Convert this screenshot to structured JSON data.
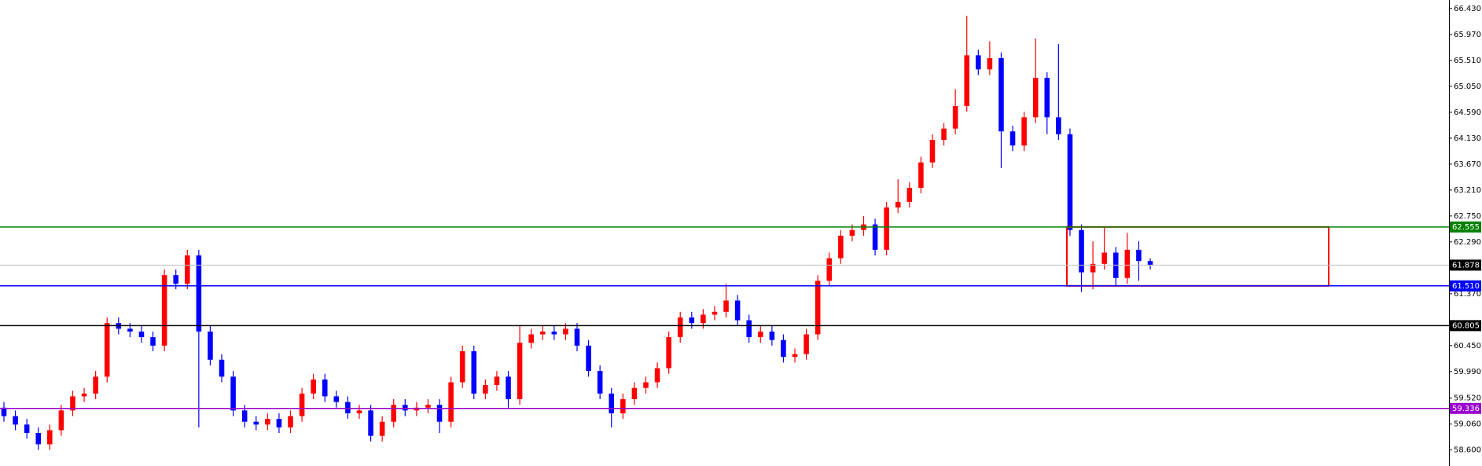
{
  "chart_data": {
    "type": "candlestick",
    "up_color": "#ff0000",
    "down_color": "#0000ff",
    "ylim": [
      58.315,
      66.581
    ],
    "yticks": [
      {
        "value": 66.43,
        "label": "66.430"
      },
      {
        "value": 65.97,
        "label": "65.970"
      },
      {
        "value": 65.51,
        "label": "65.510"
      },
      {
        "value": 65.05,
        "label": "65.050"
      },
      {
        "value": 64.59,
        "label": "64.590"
      },
      {
        "value": 64.13,
        "label": "64.130"
      },
      {
        "value": 63.67,
        "label": "63.670"
      },
      {
        "value": 63.21,
        "label": "63.210"
      },
      {
        "value": 62.75,
        "label": "62.750"
      },
      {
        "value": 62.29,
        "label": "62.290"
      },
      {
        "value": 61.37,
        "label": "61.370"
      },
      {
        "value": 60.45,
        "label": "60.450"
      },
      {
        "value": 59.99,
        "label": "59.990"
      },
      {
        "value": 59.52,
        "label": "59.520"
      },
      {
        "value": 59.06,
        "label": "59.060"
      },
      {
        "value": 58.6,
        "label": "58.600"
      }
    ],
    "levels": [
      {
        "value": 62.555,
        "color": "#008000",
        "label_color": "#008000"
      },
      {
        "value": 61.878,
        "color": "#c0c0c0",
        "label_color": "#000000"
      },
      {
        "value": 61.51,
        "label": "61.510",
        "color": "#0000ff",
        "label_color": "#0000ff"
      },
      {
        "value": 60.805,
        "color": "#000000",
        "label_color": "#000000"
      },
      {
        "value": 59.336,
        "color": "#9900cc",
        "label_color": "#9900cc"
      }
    ],
    "open": [
      59.35,
      59.2,
      59.05,
      58.9,
      58.7,
      58.95,
      59.3,
      59.55,
      59.6,
      59.9,
      60.85,
      60.75,
      60.7,
      60.6,
      60.45,
      61.7,
      61.55,
      62.05,
      60.7,
      60.2,
      59.9,
      59.3,
      59.1,
      59.05,
      59.15,
      59.0,
      59.2,
      59.6,
      59.85,
      59.55,
      59.45,
      59.25,
      59.3,
      58.85,
      59.1,
      59.4,
      59.3,
      59.35,
      59.4,
      59.1,
      59.8,
      60.35,
      59.6,
      59.75,
      59.9,
      59.5,
      60.5,
      60.65,
      60.7,
      60.65,
      60.75,
      60.45,
      60.0,
      59.6,
      59.25,
      59.5,
      59.7,
      59.8,
      60.05,
      60.6,
      60.95,
      60.85,
      61.0,
      61.05,
      61.25,
      60.9,
      60.6,
      60.7,
      60.55,
      60.25,
      60.3,
      60.65,
      61.6,
      62.0,
      62.4,
      62.5,
      62.6,
      62.15,
      62.9,
      63.0,
      63.25,
      63.7,
      64.1,
      64.3,
      64.7,
      65.6,
      65.35,
      65.55,
      64.25,
      64.0,
      64.5,
      65.2,
      64.5,
      64.2,
      62.5,
      61.75,
      61.9,
      62.1,
      61.65,
      62.15,
      61.95
    ],
    "high": [
      59.45,
      59.3,
      59.15,
      59.0,
      59.05,
      59.4,
      59.65,
      59.7,
      60.0,
      60.95,
      60.95,
      60.85,
      60.8,
      60.7,
      61.8,
      61.8,
      62.15,
      62.15,
      60.8,
      60.3,
      60.0,
      59.4,
      59.2,
      59.25,
      59.25,
      59.3,
      59.7,
      59.95,
      59.95,
      59.65,
      59.55,
      59.4,
      59.4,
      59.2,
      59.5,
      59.5,
      59.45,
      59.5,
      59.5,
      59.9,
      60.45,
      60.45,
      59.85,
      60.0,
      60.0,
      60.8,
      60.75,
      60.8,
      60.8,
      60.85,
      60.85,
      60.55,
      60.1,
      59.7,
      59.6,
      59.8,
      59.9,
      60.15,
      60.7,
      61.05,
      61.05,
      61.1,
      61.15,
      61.55,
      61.35,
      61.0,
      60.8,
      60.8,
      60.65,
      60.4,
      60.75,
      61.7,
      62.1,
      62.5,
      62.6,
      62.75,
      62.7,
      63.0,
      63.4,
      63.35,
      63.8,
      64.2,
      64.4,
      65.0,
      66.3,
      65.7,
      65.85,
      65.65,
      64.35,
      64.6,
      65.9,
      65.3,
      65.8,
      64.3,
      62.6,
      62.3,
      62.55,
      62.2,
      62.45,
      62.3,
      62.0
    ],
    "low": [
      59.1,
      58.95,
      58.8,
      58.6,
      58.6,
      58.85,
      59.2,
      59.45,
      59.5,
      59.8,
      60.65,
      60.6,
      60.5,
      60.35,
      60.35,
      61.45,
      61.45,
      59.0,
      60.1,
      59.8,
      59.2,
      59.0,
      58.95,
      58.95,
      58.9,
      58.9,
      59.1,
      59.5,
      59.45,
      59.35,
      59.15,
      59.15,
      58.75,
      58.75,
      59.0,
      59.2,
      59.2,
      59.25,
      58.9,
      59.0,
      59.7,
      59.5,
      59.5,
      59.65,
      59.35,
      59.4,
      60.4,
      60.55,
      60.55,
      60.55,
      60.35,
      59.9,
      59.5,
      59.0,
      59.15,
      59.4,
      59.6,
      59.7,
      59.95,
      60.5,
      60.75,
      60.75,
      60.9,
      60.95,
      60.8,
      60.5,
      60.5,
      60.45,
      60.15,
      60.15,
      60.2,
      60.55,
      61.5,
      61.9,
      62.3,
      62.4,
      62.05,
      62.05,
      62.8,
      62.9,
      63.15,
      63.6,
      64.0,
      64.2,
      64.6,
      65.25,
      65.25,
      63.6,
      63.9,
      63.9,
      64.4,
      64.2,
      64.1,
      62.4,
      61.4,
      61.45,
      61.8,
      61.5,
      61.55,
      61.6,
      61.8
    ],
    "close": [
      59.2,
      59.05,
      58.9,
      58.7,
      58.95,
      59.3,
      59.55,
      59.6,
      59.9,
      60.85,
      60.75,
      60.7,
      60.6,
      60.45,
      61.7,
      61.55,
      62.05,
      60.7,
      60.2,
      59.9,
      59.3,
      59.1,
      59.05,
      59.15,
      59.0,
      59.2,
      59.6,
      59.85,
      59.55,
      59.45,
      59.25,
      59.3,
      58.85,
      59.1,
      59.4,
      59.3,
      59.35,
      59.4,
      59.1,
      59.8,
      60.35,
      59.6,
      59.75,
      59.9,
      59.5,
      60.5,
      60.65,
      60.7,
      60.65,
      60.75,
      60.45,
      60.0,
      59.6,
      59.25,
      59.5,
      59.7,
      59.8,
      60.05,
      60.6,
      60.95,
      60.85,
      61.0,
      61.05,
      61.25,
      60.9,
      60.6,
      60.7,
      60.55,
      60.25,
      60.3,
      60.65,
      61.6,
      62.0,
      62.4,
      62.5,
      62.6,
      62.15,
      62.9,
      63.0,
      63.25,
      63.7,
      64.1,
      64.3,
      64.7,
      65.6,
      65.35,
      65.55,
      64.25,
      64.0,
      64.5,
      65.2,
      64.5,
      64.2,
      62.5,
      61.75,
      61.9,
      62.1,
      61.65,
      62.15,
      61.95,
      61.88
    ]
  }
}
